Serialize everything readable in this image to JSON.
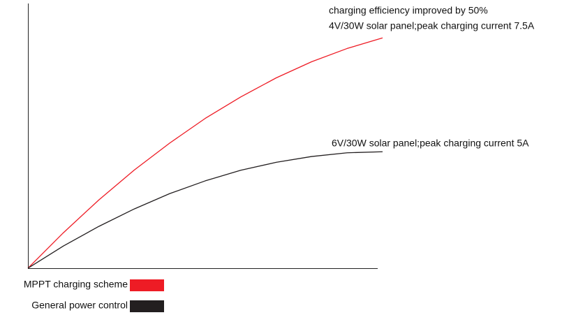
{
  "chart_data": {
    "type": "line",
    "x": [
      0,
      1,
      2,
      3,
      4,
      5,
      6,
      7,
      8,
      9,
      10
    ],
    "xlim": [
      0,
      10
    ],
    "ylim": [
      0,
      100
    ],
    "series": [
      {
        "name": "MPPT charging scheme",
        "color": "#ee1c25",
        "values": [
          0,
          13.4,
          25.8,
          37.1,
          47.3,
          56.6,
          64.7,
          71.9,
          78,
          83,
          87
        ]
      },
      {
        "name": "General power control",
        "color": "#231f20",
        "values": [
          0,
          8.4,
          15.8,
          22.4,
          28.2,
          33,
          37,
          40,
          42.2,
          43.6,
          44
        ]
      }
    ],
    "annotations": [
      "charging efficiency improved by 50%",
      "4V/30W solar panel;peak charging current 7.5A",
      "6V/30W solar panel;peak charging current 5A"
    ],
    "legend": "bottom-left"
  }
}
